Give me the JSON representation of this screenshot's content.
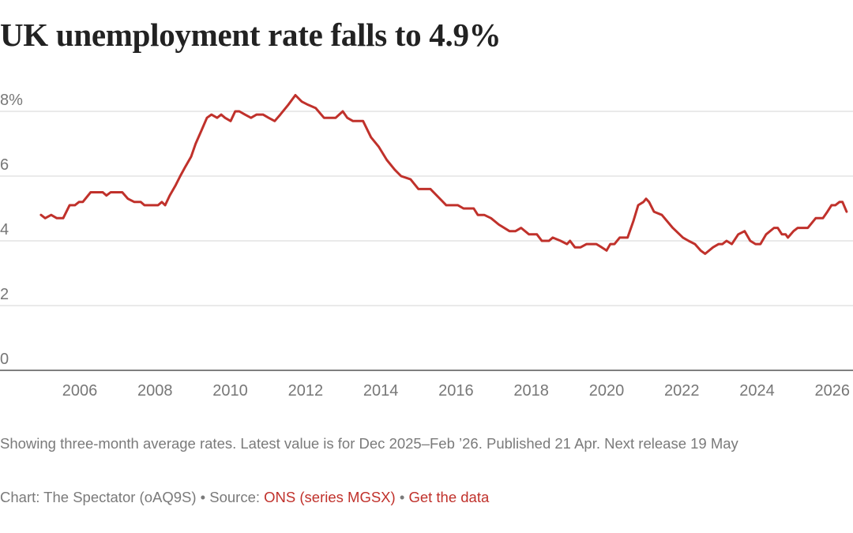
{
  "title": "UK unemployment rate falls to 4.9%",
  "footer": {
    "note": "Showing three-month average rates. Latest value is for Dec 2025–Feb ’26. Published 21 Apr. Next release 19 May",
    "credit_prefix": "Chart: The Spectator (oAQ9S) • Source: ",
    "source_link": "ONS (series MGSX)",
    "separator": " • ",
    "data_link": "Get the data"
  },
  "colors": {
    "line": "#c0312b",
    "grid": "#e3e3e3",
    "axis": "#333333",
    "tick_text": "#777777",
    "link": "#c0312b"
  },
  "chart_data": {
    "type": "line",
    "title": "UK unemployment rate falls to 4.9%",
    "xlabel": "",
    "ylabel": "",
    "xlim": [
      2003.88,
      2026.55
    ],
    "ylim": [
      0,
      8.6
    ],
    "grid": true,
    "y_ticks": [
      0,
      2,
      4,
      6,
      8
    ],
    "y_tick_labels": [
      "0",
      "2",
      "4",
      "6",
      "8%"
    ],
    "x_ticks": [
      2006,
      2008,
      2010,
      2012,
      2014,
      2016,
      2018,
      2020,
      2022,
      2024,
      2026
    ],
    "x_tick_labels": [
      "2006",
      "2008",
      "2010",
      "2012",
      "2014",
      "2016",
      "2018",
      "2020",
      "2022",
      "2024",
      "2026"
    ],
    "series": [
      {
        "x": [
          2004.97,
          2005.08,
          2005.24,
          2005.39,
          2005.56,
          2005.73,
          2005.87,
          2005.98,
          2006.08,
          2006.29,
          2006.61,
          2006.71,
          2006.82,
          2007.13,
          2007.28,
          2007.45,
          2007.62,
          2007.72,
          2008.08,
          2008.18,
          2008.27,
          2008.39,
          2008.54,
          2008.67,
          2008.81,
          2008.96,
          2009.08,
          2009.23,
          2009.38,
          2009.5,
          2009.65,
          2009.76,
          2009.86,
          2010.01,
          2010.13,
          2010.24,
          2010.39,
          2010.55,
          2010.7,
          2010.87,
          2011.02,
          2011.18,
          2011.33,
          2011.54,
          2011.73,
          2011.9,
          2012.07,
          2012.27,
          2012.49,
          2012.8,
          2012.99,
          2013.11,
          2013.26,
          2013.53,
          2013.74,
          2013.95,
          2014.16,
          2014.37,
          2014.54,
          2014.79,
          2015.0,
          2015.21,
          2015.32,
          2015.74,
          2016.05,
          2016.2,
          2016.47,
          2016.58,
          2016.75,
          2016.93,
          2017.14,
          2017.42,
          2017.58,
          2017.73,
          2017.94,
          2018.15,
          2018.28,
          2018.47,
          2018.57,
          2018.78,
          2018.95,
          2019.03,
          2019.16,
          2019.31,
          2019.47,
          2019.73,
          2019.87,
          2020.0,
          2020.1,
          2020.21,
          2020.35,
          2020.56,
          2020.71,
          2020.84,
          2020.98,
          2021.05,
          2021.13,
          2021.26,
          2021.47,
          2021.76,
          2022.03,
          2022.18,
          2022.35,
          2022.5,
          2022.62,
          2022.83,
          2022.98,
          2023.08,
          2023.19,
          2023.33,
          2023.5,
          2023.67,
          2023.82,
          2023.96,
          2024.09,
          2024.24,
          2024.45,
          2024.55,
          2024.66,
          2024.76,
          2024.82,
          2024.97,
          2025.08,
          2025.24,
          2025.35,
          2025.56,
          2025.75,
          2025.87,
          2025.98,
          2026.08,
          2026.19,
          2026.27,
          2026.38
        ],
        "y": [
          4.8,
          4.7,
          4.8,
          4.7,
          4.7,
          5.1,
          5.1,
          5.2,
          5.2,
          5.5,
          5.5,
          5.4,
          5.5,
          5.5,
          5.3,
          5.2,
          5.2,
          5.1,
          5.1,
          5.2,
          5.1,
          5.4,
          5.7,
          6.0,
          6.3,
          6.6,
          7.0,
          7.4,
          7.8,
          7.9,
          7.8,
          7.9,
          7.8,
          7.7,
          8.0,
          8.0,
          7.9,
          7.8,
          7.9,
          7.9,
          7.8,
          7.7,
          7.9,
          8.2,
          8.5,
          8.3,
          8.2,
          8.1,
          7.8,
          7.8,
          8.0,
          7.8,
          7.7,
          7.7,
          7.2,
          6.9,
          6.5,
          6.2,
          6.0,
          5.9,
          5.6,
          5.6,
          5.6,
          5.1,
          5.1,
          5.0,
          5.0,
          4.8,
          4.8,
          4.7,
          4.5,
          4.3,
          4.3,
          4.4,
          4.2,
          4.2,
          4.0,
          4.0,
          4.1,
          4.0,
          3.9,
          4.0,
          3.8,
          3.8,
          3.9,
          3.9,
          3.8,
          3.7,
          3.9,
          3.9,
          4.1,
          4.1,
          4.6,
          5.1,
          5.2,
          5.3,
          5.2,
          4.9,
          4.8,
          4.4,
          4.1,
          4.0,
          3.9,
          3.7,
          3.6,
          3.8,
          3.9,
          3.9,
          4.0,
          3.9,
          4.2,
          4.3,
          4.0,
          3.9,
          3.9,
          4.2,
          4.4,
          4.4,
          4.2,
          4.2,
          4.1,
          4.3,
          4.4,
          4.4,
          4.4,
          4.7,
          4.7,
          4.9,
          5.1,
          5.1,
          5.2,
          5.2,
          4.9
        ]
      }
    ]
  }
}
